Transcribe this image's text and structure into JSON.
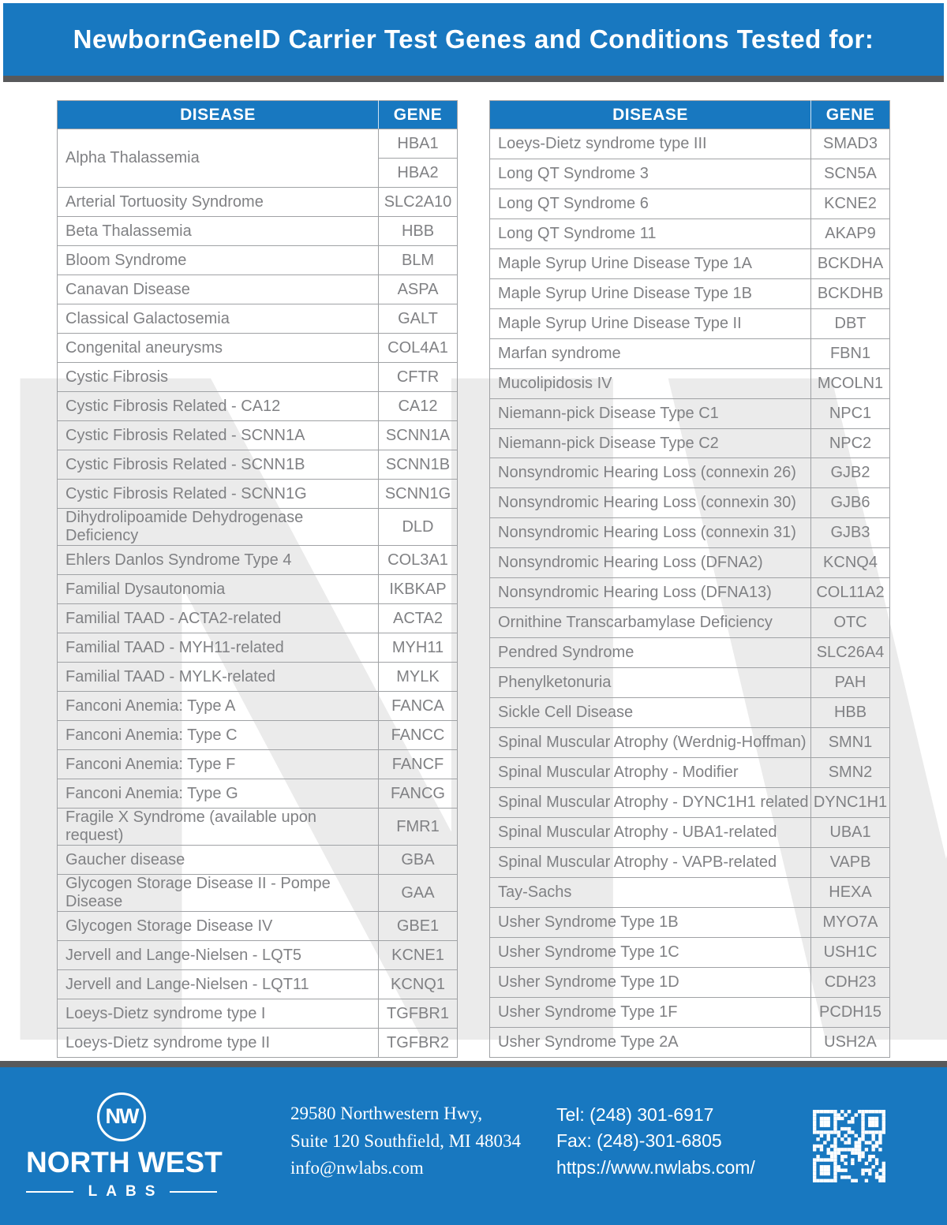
{
  "colors": {
    "brand_blue": "#1878c0",
    "dark_strip": "#58595b",
    "cell_text": "#808184",
    "cell_border": "#a0a2a5",
    "watermark_gray": "#ebebeb"
  },
  "header": {
    "title": "NewbornGeneID Carrier Test Genes and Conditions Tested for:"
  },
  "table_headers": {
    "disease": "DISEASE",
    "gene": "GENE"
  },
  "watermark_text": "NW",
  "tables": {
    "left": [
      {
        "disease": "Alpha Thalassemia",
        "genes": [
          "HBA1",
          "HBA2"
        ]
      },
      {
        "disease": "Arterial Tortuosity Syndrome",
        "genes": [
          "SLC2A10"
        ]
      },
      {
        "disease": "Beta Thalassemia",
        "genes": [
          "HBB"
        ]
      },
      {
        "disease": "Bloom Syndrome",
        "genes": [
          "BLM"
        ]
      },
      {
        "disease": "Canavan Disease",
        "genes": [
          "ASPA"
        ]
      },
      {
        "disease": "Classical Galactosemia",
        "genes": [
          "GALT"
        ]
      },
      {
        "disease": "Congenital aneurysms",
        "genes": [
          "COL4A1"
        ]
      },
      {
        "disease": "Cystic Fibrosis",
        "genes": [
          "CFTR"
        ]
      },
      {
        "disease": "Cystic Fibrosis Related - CA12",
        "genes": [
          "CA12"
        ]
      },
      {
        "disease": "Cystic Fibrosis Related - SCNN1A",
        "genes": [
          "SCNN1A"
        ]
      },
      {
        "disease": "Cystic Fibrosis Related - SCNN1B",
        "genes": [
          "SCNN1B"
        ]
      },
      {
        "disease": "Cystic Fibrosis Related - SCNN1G",
        "genes": [
          "SCNN1G"
        ]
      },
      {
        "disease": "Dihydrolipoamide Dehydrogenase Deficiency",
        "genes": [
          "DLD"
        ]
      },
      {
        "disease": "Ehlers Danlos Syndrome Type 4",
        "genes": [
          "COL3A1"
        ]
      },
      {
        "disease": "Familial Dysautonomia",
        "genes": [
          "IKBKAP"
        ]
      },
      {
        "disease": "Familial TAAD - ACTA2-related",
        "genes": [
          "ACTA2"
        ]
      },
      {
        "disease": "Familial TAAD - MYH11-related",
        "genes": [
          "MYH11"
        ]
      },
      {
        "disease": "Familial TAAD - MYLK-related",
        "genes": [
          "MYLK"
        ]
      },
      {
        "disease": "Fanconi Anemia: Type A",
        "genes": [
          "FANCA"
        ]
      },
      {
        "disease": "Fanconi Anemia: Type C",
        "genes": [
          "FANCC"
        ]
      },
      {
        "disease": "Fanconi Anemia: Type F",
        "genes": [
          "FANCF"
        ]
      },
      {
        "disease": "Fanconi Anemia: Type G",
        "genes": [
          "FANCG"
        ]
      },
      {
        "disease": "Fragile X Syndrome (available upon request)",
        "genes": [
          "FMR1"
        ]
      },
      {
        "disease": "Gaucher disease",
        "genes": [
          "GBA"
        ]
      },
      {
        "disease": "Glycogen Storage Disease II - Pompe Disease",
        "genes": [
          "GAA"
        ]
      },
      {
        "disease": "Glycogen Storage Disease IV",
        "genes": [
          "GBE1"
        ]
      },
      {
        "disease": "Jervell and Lange-Nielsen - LQT5",
        "genes": [
          "KCNE1"
        ]
      },
      {
        "disease": "Jervell and Lange-Nielsen - LQT11",
        "genes": [
          "KCNQ1"
        ]
      },
      {
        "disease": "Loeys-Dietz syndrome type I",
        "genes": [
          "TGFBR1"
        ]
      },
      {
        "disease": "Loeys-Dietz syndrome type II",
        "genes": [
          "TGFBR2"
        ]
      }
    ],
    "right": [
      {
        "disease": "Loeys-Dietz syndrome type III",
        "genes": [
          "SMAD3"
        ]
      },
      {
        "disease": "Long QT Syndrome 3",
        "genes": [
          "SCN5A"
        ]
      },
      {
        "disease": "Long QT Syndrome 6",
        "genes": [
          "KCNE2"
        ]
      },
      {
        "disease": "Long QT Syndrome 11",
        "genes": [
          "AKAP9"
        ]
      },
      {
        "disease": "Maple Syrup Urine Disease Type 1A",
        "genes": [
          "BCKDHA"
        ]
      },
      {
        "disease": "Maple Syrup Urine Disease Type 1B",
        "genes": [
          "BCKDHB"
        ]
      },
      {
        "disease": "Maple Syrup Urine Disease Type II",
        "genes": [
          "DBT"
        ]
      },
      {
        "disease": "Marfan syndrome",
        "genes": [
          "FBN1"
        ]
      },
      {
        "disease": "Mucolipidosis IV",
        "genes": [
          "MCOLN1"
        ]
      },
      {
        "disease": "Niemann-pick Disease Type C1",
        "genes": [
          "NPC1"
        ]
      },
      {
        "disease": "Niemann-pick Disease Type C2",
        "genes": [
          "NPC2"
        ]
      },
      {
        "disease": "Nonsyndromic Hearing Loss (connexin 26)",
        "genes": [
          "GJB2"
        ]
      },
      {
        "disease": "Nonsyndromic Hearing Loss (connexin 30)",
        "genes": [
          "GJB6"
        ]
      },
      {
        "disease": "Nonsyndromic Hearing Loss (connexin 31)",
        "genes": [
          "GJB3"
        ]
      },
      {
        "disease": "Nonsyndromic Hearing Loss (DFNA2)",
        "genes": [
          "KCNQ4"
        ]
      },
      {
        "disease": "Nonsyndromic Hearing Loss (DFNA13)",
        "genes": [
          "COL11A2"
        ]
      },
      {
        "disease": "Ornithine Transcarbamylase Deficiency",
        "genes": [
          "OTC"
        ]
      },
      {
        "disease": "Pendred Syndrome",
        "genes": [
          "SLC26A4"
        ]
      },
      {
        "disease": "Phenylketonuria",
        "genes": [
          "PAH"
        ]
      },
      {
        "disease": "Sickle Cell Disease",
        "genes": [
          "HBB"
        ]
      },
      {
        "disease": "Spinal Muscular Atrophy (Werdnig-Hoffman)",
        "genes": [
          "SMN1"
        ]
      },
      {
        "disease": "Spinal Muscular Atrophy - Modifier",
        "genes": [
          "SMN2"
        ]
      },
      {
        "disease": "Spinal Muscular Atrophy - DYNC1H1 related",
        "genes": [
          "DYNC1H1"
        ]
      },
      {
        "disease": "Spinal Muscular Atrophy - UBA1-related",
        "genes": [
          "UBA1"
        ]
      },
      {
        "disease": "Spinal Muscular Atrophy - VAPB-related",
        "genes": [
          "VAPB"
        ]
      },
      {
        "disease": "Tay-Sachs",
        "genes": [
          "HEXA"
        ]
      },
      {
        "disease": "Usher Syndrome Type 1B",
        "genes": [
          "MYO7A"
        ]
      },
      {
        "disease": "Usher Syndrome Type 1C",
        "genes": [
          "USH1C"
        ]
      },
      {
        "disease": "Usher Syndrome Type 1D",
        "genes": [
          "CDH23"
        ]
      },
      {
        "disease": "Usher Syndrome Type 1F",
        "genes": [
          "PCDH15"
        ]
      },
      {
        "disease": "Usher Syndrome Type 2A",
        "genes": [
          "USH2A"
        ]
      }
    ]
  },
  "footer": {
    "logo": {
      "monogram": "NW",
      "name": "NORTH WEST",
      "subtitle": "LABS"
    },
    "address_lines": [
      "29580 Northwestern Hwy,",
      "Suite 120 Southfield, MI 48034",
      "info@nwlabs.com"
    ],
    "contact_lines": [
      "Tel: (248) 301-6917",
      "Fax: (248)-301-6805",
      "https://www.nwlabs.com/"
    ]
  }
}
